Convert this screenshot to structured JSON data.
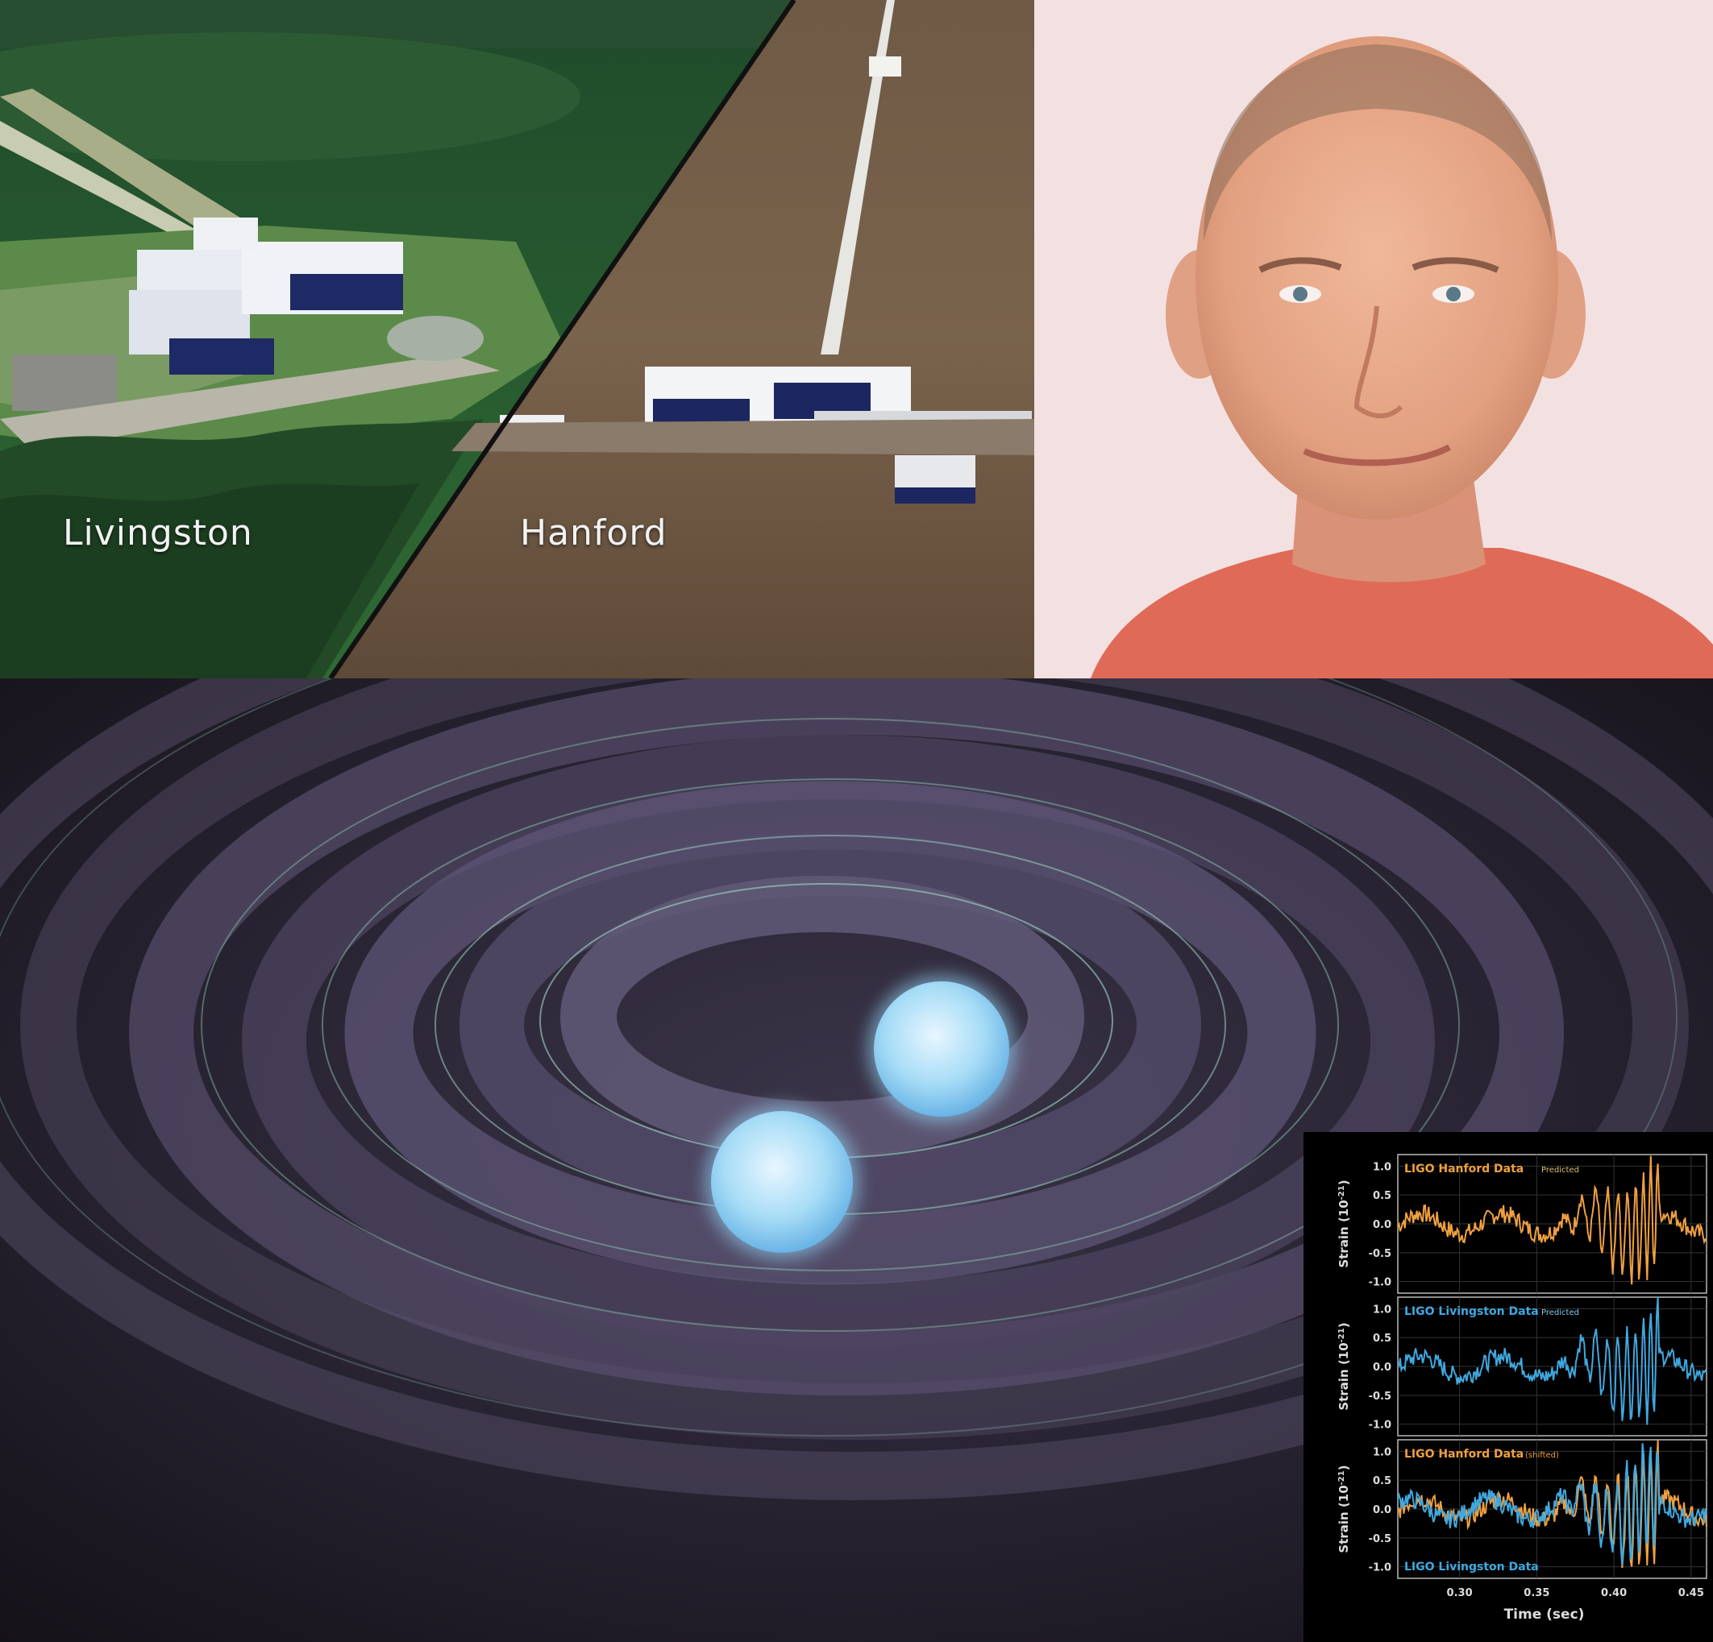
{
  "aerial_photo": {
    "labels": [
      "Livingston",
      "Hanford"
    ]
  },
  "chart_data": {
    "type": "line",
    "x_label": "Time (sec)",
    "x_ticks": [
      "0.30",
      "0.35",
      "0.40",
      "0.45"
    ],
    "xlim": [
      0.26,
      0.46
    ],
    "y_ticks": [
      "1.0",
      "0.5",
      "0.0",
      "-0.5",
      "-1.0"
    ],
    "ylim": [
      -1.2,
      1.2
    ],
    "panels": [
      {
        "y_label_base": "Strain (10",
        "y_label_exp": "-21",
        "y_label_tail": ")",
        "title": "LIGO Hanford Data",
        "title_color": "#f0a040",
        "note": "Predicted",
        "note_color": "#d8c070",
        "series": [
          {
            "name": "LIGO Hanford Data",
            "color": "#f0a040"
          }
        ]
      },
      {
        "y_label_base": "Strain (10",
        "y_label_exp": "-21",
        "y_label_tail": ")",
        "title": "LIGO Livingston Data",
        "title_color": "#40a8e0",
        "note": "Predicted",
        "note_color": "#80c8e8",
        "series": [
          {
            "name": "LIGO Livingston Data",
            "color": "#40a8e0"
          }
        ]
      },
      {
        "y_label_base": "Strain (10",
        "y_label_exp": "-21",
        "y_label_tail": ")",
        "title": "LIGO Hanford Data",
        "title_color": "#f0a040",
        "note": "(shifted)",
        "note_color": "#f0a040",
        "bottom_label": "LIGO Livingston Data",
        "bottom_label_color": "#40a8e0",
        "series": [
          {
            "name": "LIGO Hanford Data",
            "color": "#f0a040"
          },
          {
            "name": "LIGO Livingston Data",
            "color": "#40a8e0"
          }
        ]
      }
    ]
  }
}
